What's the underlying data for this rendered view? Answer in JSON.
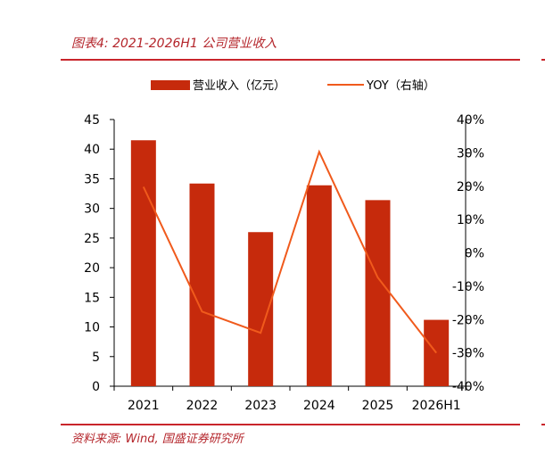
{
  "header": {
    "title": "图表4:  2021-2026H1 公司营业收入"
  },
  "footer": {
    "source": "资料来源:  Wind, 国盛证券研究所"
  },
  "colors": {
    "bar": "#c62a0c",
    "line": "#f05a1c",
    "rule": "#c9252b",
    "axis": "#000000"
  },
  "chart_data": {
    "type": "bar",
    "categories": [
      "2021",
      "2022",
      "2023",
      "2024",
      "2025",
      "2026H1"
    ],
    "series": [
      {
        "name": "营业收入（亿元）",
        "type": "bar",
        "axis": "left",
        "values": [
          41.5,
          34.2,
          26.0,
          33.9,
          31.4,
          11.2
        ]
      },
      {
        "name": "YOY（右轴）",
        "type": "line",
        "axis": "right",
        "values": [
          19.8,
          -17.6,
          -24.0,
          30.3,
          -7.4,
          -30.0
        ]
      }
    ],
    "left_axis": {
      "ylim": [
        0,
        45
      ],
      "ticks": [
        "0",
        "5",
        "10",
        "15",
        "20",
        "25",
        "30",
        "35",
        "40",
        "45"
      ]
    },
    "right_axis": {
      "ylim": [
        -40,
        40
      ],
      "ticks": [
        "-40%",
        "-30%",
        "-20%",
        "-10%",
        "0%",
        "10%",
        "20%",
        "30%",
        "40%"
      ]
    },
    "legend": "top-center",
    "grid": false
  }
}
